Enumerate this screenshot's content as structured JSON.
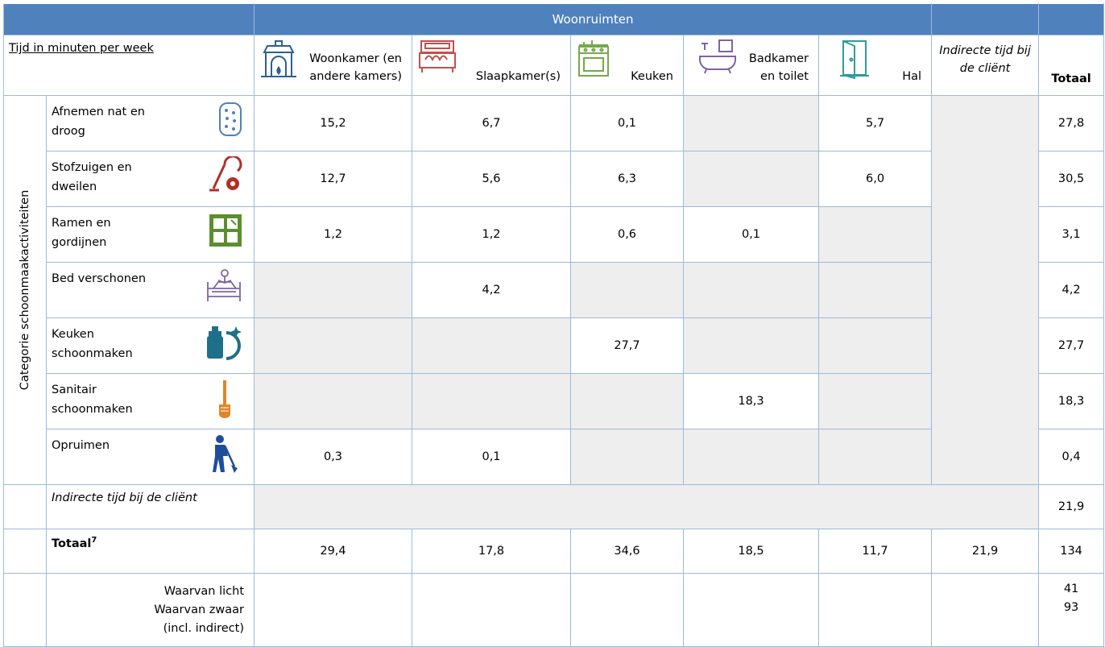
{
  "header": {
    "group_title": "Woonruimten",
    "row_label": "Tijd in minuten per week",
    "rooms": [
      {
        "label": "Woonkamer (en andere kamers)",
        "icon": "fireplace-icon"
      },
      {
        "label": "Slaapkamer(s)",
        "icon": "bed-icon"
      },
      {
        "label": "Keuken",
        "icon": "stove-icon"
      },
      {
        "label": "Badkamer en toilet",
        "icon": "bathtub-icon"
      },
      {
        "label": "Hal",
        "icon": "door-icon"
      }
    ],
    "indirect_label": "Indirecte tijd bij de cliënt",
    "total_label": "Totaal"
  },
  "category_label": "Categorie schoonmaakactiviteiten",
  "activities": [
    {
      "name": "Afnemen nat en droog",
      "icon": "sponge-icon",
      "values": [
        "15,2",
        "6,7",
        "0,1",
        "",
        "5,7"
      ],
      "total": "27,8"
    },
    {
      "name": "Stofzuigen en dweilen",
      "icon": "vacuum-cleaner-icon",
      "values": [
        "12,7",
        "5,6",
        "6,3",
        "",
        "6,0"
      ],
      "total": "30,5"
    },
    {
      "name": "Ramen en gordijnen",
      "icon": "window-icon",
      "values": [
        "1,2",
        "1,2",
        "0,6",
        "0,1",
        ""
      ],
      "total": "3,1"
    },
    {
      "name": "Bed verschonen",
      "icon": "bed-making-icon",
      "values": [
        "",
        "4,2",
        "",
        "",
        ""
      ],
      "total": "4,2"
    },
    {
      "name": "Keuken schoonmaken",
      "icon": "detergent-icon",
      "values": [
        "",
        "",
        "27,7",
        "",
        ""
      ],
      "total": "27,7"
    },
    {
      "name": "Sanitair schoonmaken",
      "icon": "toilet-brush-icon",
      "values": [
        "",
        "",
        "",
        "18,3",
        ""
      ],
      "total": "18,3"
    },
    {
      "name": "Opruimen",
      "icon": "tidying-person-icon",
      "values": [
        "0,3",
        "0,1",
        "",
        "",
        ""
      ],
      "total": "0,4"
    }
  ],
  "indirect_row": {
    "label": "Indirecte tijd bij de cliënt",
    "total": "21,9"
  },
  "total_row": {
    "label": "Totaal",
    "footnote": "7",
    "values": [
      "29,4",
      "17,8",
      "34,6",
      "18,5",
      "11,7",
      "21,9"
    ],
    "total": "134"
  },
  "breakdown": {
    "light_label": "Waarvan licht",
    "heavy_label": "Waarvan zwaar (incl. indirect)",
    "light_total": "41",
    "heavy_total": "93"
  },
  "colors": {
    "header_band": "#4f81bd",
    "grid": "#9bbbd9",
    "shaded_cell": "#eeeeee",
    "icon_fireplace": "#2f5f8f",
    "icon_bed": "#c0504d",
    "icon_stove": "#77a84b",
    "icon_bathtub": "#8064a2",
    "icon_door": "#2e9b9b",
    "icon_sponge": "#4f81bd",
    "icon_vacuum": "#b0302a",
    "icon_window": "#5b8f2e",
    "icon_bedmaking": "#8064a2",
    "icon_detergent": "#1f6f8b",
    "icon_brush": "#e0852a",
    "icon_person": "#1f4e99"
  }
}
